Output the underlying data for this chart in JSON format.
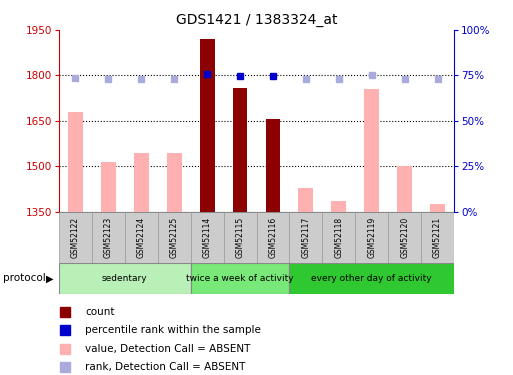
{
  "title": "GDS1421 / 1383324_at",
  "samples": [
    "GSM52122",
    "GSM52123",
    "GSM52124",
    "GSM52125",
    "GSM52114",
    "GSM52115",
    "GSM52116",
    "GSM52117",
    "GSM52118",
    "GSM52119",
    "GSM52120",
    "GSM52121"
  ],
  "count_values": [
    null,
    null,
    null,
    null,
    1920,
    1760,
    1655,
    null,
    null,
    null,
    null,
    null
  ],
  "count_absent_values": [
    1680,
    1515,
    1545,
    1545,
    null,
    null,
    null,
    1430,
    1385,
    1755,
    1500,
    1375
  ],
  "rank_values": [
    null,
    null,
    null,
    null,
    1805,
    1797,
    1797,
    null,
    null,
    null,
    null,
    null
  ],
  "rank_absent_values": [
    1790,
    1789,
    1787,
    1787,
    null,
    null,
    null,
    1788,
    1787,
    1800,
    1787,
    1787
  ],
  "ylim": [
    1350,
    1950
  ],
  "yticks": [
    1350,
    1500,
    1650,
    1800,
    1950
  ],
  "right_ylim": [
    0,
    100
  ],
  "right_yticks": [
    0,
    25,
    50,
    75,
    100
  ],
  "right_yticklabels": [
    "0%",
    "25%",
    "50%",
    "75%",
    "100%"
  ],
  "groups": [
    {
      "label": "sedentary",
      "indices": [
        0,
        1,
        2,
        3
      ],
      "color": "#b8f0b8"
    },
    {
      "label": "twice a week of activity",
      "indices": [
        4,
        5,
        6
      ],
      "color": "#78e878"
    },
    {
      "label": "every other day of activity",
      "indices": [
        7,
        8,
        9,
        10,
        11
      ],
      "color": "#30c830"
    }
  ],
  "bar_width": 0.45,
  "count_color": "#8b0000",
  "count_absent_color": "#ffb0b0",
  "rank_color": "#0000cc",
  "rank_absent_color": "#aaaadd",
  "grid_color": "black",
  "background_chart": "white",
  "title_fontsize": 10,
  "left_axis_color": "#cc0000",
  "right_axis_color": "#0000cc"
}
